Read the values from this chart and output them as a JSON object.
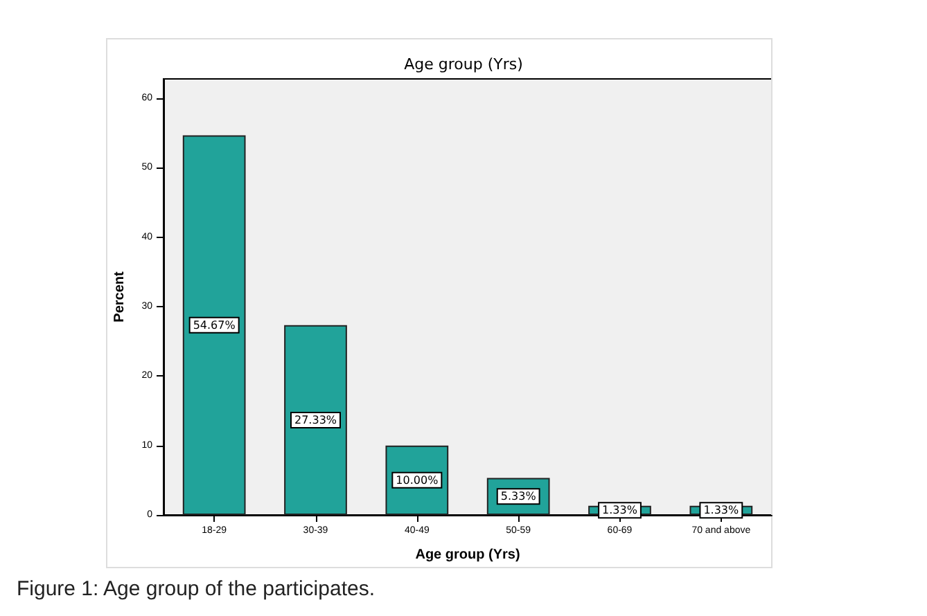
{
  "chart_data": {
    "type": "bar",
    "title": "Age group (Yrs)",
    "xlabel": "Age group (Yrs)",
    "ylabel": "Percent",
    "categories": [
      "18-29",
      "30-39",
      "40-49",
      "50-59",
      "60-69",
      "70 and above"
    ],
    "values": [
      54.67,
      27.33,
      10.0,
      5.33,
      1.33,
      1.33
    ],
    "value_labels": [
      "54.67%",
      "27.33%",
      "10.00%",
      "5.33%",
      "1.33%",
      "1.33%"
    ],
    "color": "#21a39a",
    "ylim": [
      0,
      62.8
    ],
    "yticks": [
      0,
      10,
      20,
      30,
      40,
      50,
      60
    ],
    "grid": false,
    "annotations": [
      "Figure 1: Age group of the participates."
    ]
  }
}
